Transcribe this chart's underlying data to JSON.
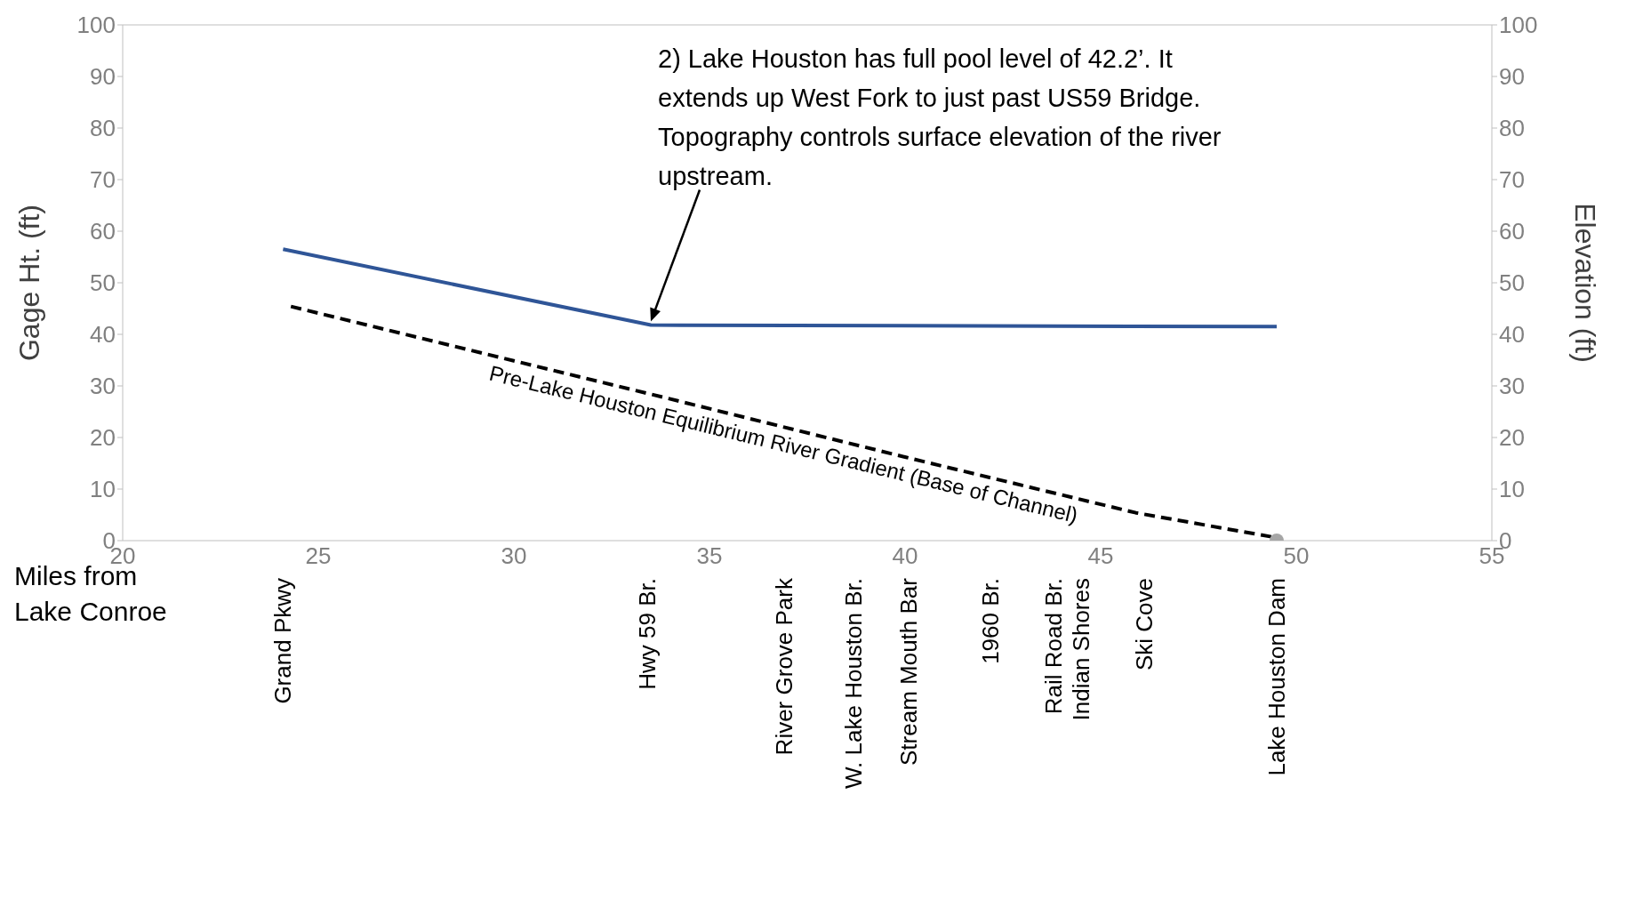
{
  "chart_data": {
    "type": "line",
    "xlabel": "Miles from Lake Conroe",
    "ylabel": "Gage Ht. (ft)",
    "y2label": "Elevation (ft)",
    "xlim": [
      20,
      55
    ],
    "xticks": [
      20,
      25,
      30,
      35,
      40,
      45,
      50,
      55
    ],
    "ylim": [
      0,
      100
    ],
    "yticks": [
      0,
      10,
      20,
      30,
      40,
      50,
      60,
      70,
      80,
      90,
      100
    ],
    "y2lim": [
      0,
      100
    ],
    "y2ticks": [
      0,
      10,
      20,
      30,
      40,
      50,
      60,
      70,
      80,
      90,
      100
    ],
    "series": [
      {
        "color": "#2f5597",
        "x": [
          24.1,
          33.5,
          49.5
        ],
        "values": [
          56.5,
          41.8,
          41.5
        ]
      },
      {
        "color": "#000000",
        "line_style": "dashed",
        "x": [
          24.3,
          33.5,
          40,
          45.9,
          49.4
        ],
        "values": [
          45.4,
          28.4,
          16.2,
          5.4,
          0.7
        ]
      },
      {
        "type": "scatter",
        "color": "#a6a6a6",
        "marker": "circle",
        "x": [
          49.5
        ],
        "values": [
          0
        ]
      }
    ],
    "annotations": [
      "2)  Lake Houston has full pool level of 42.2’. It extends up West Fork to just past US59 Bridge. Topography controls surface elevation of the river upstream.",
      {
        "text": "Pre-Lake Houston Equilibrium River Gradient (Base of Channel)",
        "x": 37,
        "y": 22
      },
      "Grand Pkwy",
      "Hwy 59 Br.",
      "River Grove Park",
      "W. Lake Houston Br.",
      "Stream Mouth Bar",
      "1960 Br.",
      "Rail Road Br.",
      "Indian Shores",
      "Ski Cove",
      "Lake Houston Dam"
    ]
  }
}
